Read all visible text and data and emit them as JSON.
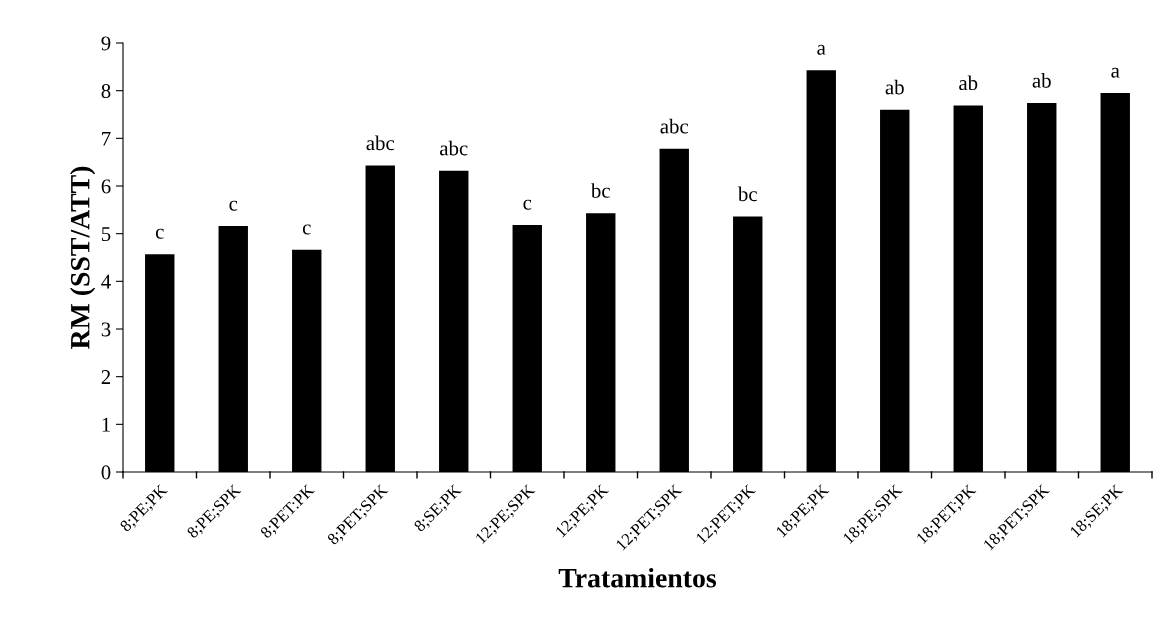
{
  "chart_data": {
    "type": "bar",
    "xlabel": "Tratamientos",
    "ylabel": "RM (SST/ATT)",
    "categories": [
      "8;PE;PK",
      "8;PE;SPK",
      "8;PET:PK",
      "8;PET;SPK",
      "8;SE;PK",
      "12;PE;SPK",
      "12;PE;PK",
      "12;PET;SPK",
      "12;PET;PK",
      "18;PE;PK",
      "18;PE;SPK",
      "18;PET;PK",
      "18;PET;SPK",
      "18;SE;PK"
    ],
    "values": [
      4.57,
      5.16,
      4.66,
      6.43,
      6.32,
      5.18,
      5.43,
      6.78,
      5.36,
      8.43,
      7.6,
      7.69,
      7.74,
      7.95
    ],
    "color": "#000000",
    "ylim": [
      0,
      9
    ],
    "yticks": [
      0,
      1,
      2,
      3,
      4,
      5,
      6,
      7,
      8,
      9
    ],
    "grid": false,
    "legend": false,
    "annotations": [
      {
        "text": "c",
        "x": "8;PE;PK",
        "y": 4.57
      },
      {
        "text": "c",
        "x": "8;PE;SPK",
        "y": 5.16
      },
      {
        "text": "c",
        "x": "8;PET:PK",
        "y": 4.66
      },
      {
        "text": "abc",
        "x": "8;PET;SPK",
        "y": 6.43
      },
      {
        "text": "abc",
        "x": "8;SE;PK",
        "y": 6.32
      },
      {
        "text": "c",
        "x": "12;PE;SPK",
        "y": 5.18
      },
      {
        "text": "bc",
        "x": "12;PE;PK",
        "y": 5.43
      },
      {
        "text": "abc",
        "x": "12;PET;SPK",
        "y": 6.78
      },
      {
        "text": "bc",
        "x": "12;PET;PK",
        "y": 5.36
      },
      {
        "text": "a",
        "x": "18;PE;PK",
        "y": 8.43
      },
      {
        "text": "ab",
        "x": "18;PE;SPK",
        "y": 7.6
      },
      {
        "text": "ab",
        "x": "18;PET;PK",
        "y": 7.69
      },
      {
        "text": "ab",
        "x": "18;PET;SPK",
        "y": 7.74
      },
      {
        "text": "a",
        "x": "18;SE;PK",
        "y": 7.95
      }
    ]
  }
}
